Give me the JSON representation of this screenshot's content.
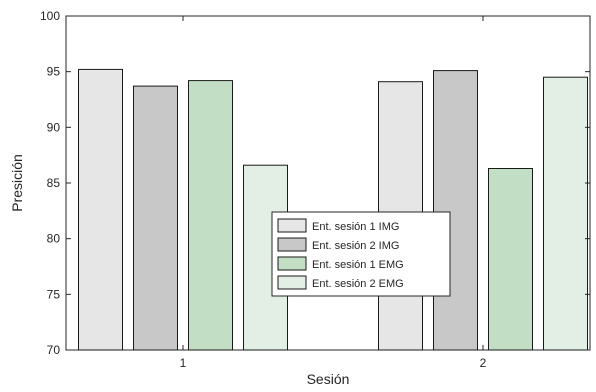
{
  "chart_data": {
    "type": "bar",
    "title": "",
    "xlabel": "Sesión",
    "ylabel": "Presición",
    "categories": [
      "1",
      "2"
    ],
    "ylim": [
      70,
      100
    ],
    "yticks": [
      70,
      75,
      80,
      85,
      90,
      95,
      100
    ],
    "grid": false,
    "legend_position": "center",
    "series": [
      {
        "name": "Ent. sesión 1 IMG",
        "color": "#e6e6e6",
        "values": [
          95.2,
          94.1
        ]
      },
      {
        "name": "Ent. sesión 2 IMG",
        "color": "#c8c8c8",
        "values": [
          93.7,
          95.1
        ]
      },
      {
        "name": "Ent. sesión 1 EMG",
        "color": "#c2dfc6",
        "values": [
          94.2,
          86.3
        ]
      },
      {
        "name": "Ent. sesión 2 EMG",
        "color": "#e3eee4",
        "values": [
          86.6,
          94.5
        ]
      }
    ]
  }
}
